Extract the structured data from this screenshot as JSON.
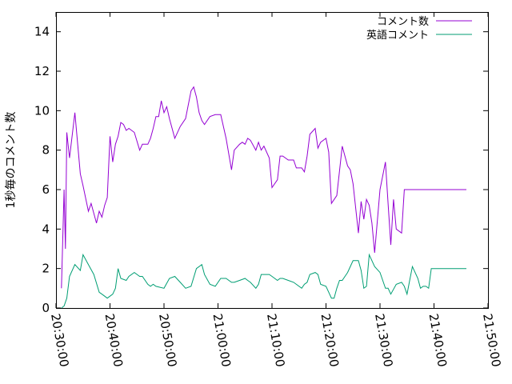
{
  "chart_data": {
    "type": "line",
    "title": "",
    "xlabel": "",
    "ylabel": "1秒毎のコメント数",
    "xlim": [
      "20:30:00",
      "21:50:00"
    ],
    "ylim": [
      0,
      15
    ],
    "xticks": [
      "20:30:00",
      "20:40:00",
      "20:50:00",
      "21:00:00",
      "21:10:00",
      "21:20:00",
      "21:30:00",
      "21:40:00",
      "21:50:00"
    ],
    "yticks": [
      "0",
      "2",
      "4",
      "6",
      "8",
      "10",
      "12",
      "14"
    ],
    "grid": false,
    "legend_position": "top-right",
    "series": [
      {
        "name": "コメント数",
        "color": "#9400d3",
        "x": [
          "20:31:00",
          "20:31:30",
          "20:31:45",
          "20:32:00",
          "20:32:30",
          "20:33:30",
          "20:34:30",
          "20:35:00",
          "20:36:00",
          "20:36:30",
          "20:37:30",
          "20:38:00",
          "20:38:30",
          "20:39:00",
          "20:39:30",
          "20:40:00",
          "20:40:30",
          "20:41:00",
          "20:41:30",
          "20:42:00",
          "20:42:30",
          "20:43:00",
          "20:43:30",
          "20:44:30",
          "20:45:30",
          "20:46:00",
          "20:47:00",
          "20:47:30",
          "20:48:00",
          "20:48:30",
          "20:49:00",
          "20:49:30",
          "20:50:00",
          "20:50:30",
          "20:51:00",
          "20:52:00",
          "20:53:00",
          "20:54:00",
          "20:54:30",
          "20:55:00",
          "20:55:30",
          "20:56:00",
          "20:56:30",
          "20:57:00",
          "20:57:30",
          "20:58:30",
          "20:59:30",
          "21:00:30",
          "21:01:30",
          "21:02:30",
          "21:03:00",
          "21:04:00",
          "21:04:30",
          "21:05:00",
          "21:05:30",
          "21:06:00",
          "21:07:00",
          "21:07:30",
          "21:08:00",
          "21:08:30",
          "21:09:30",
          "21:10:00",
          "21:11:00",
          "21:11:30",
          "21:12:00",
          "21:13:00",
          "21:14:00",
          "21:14:30",
          "21:15:30",
          "21:16:00",
          "21:16:30",
          "21:17:00",
          "21:18:00",
          "21:18:30",
          "21:19:00",
          "21:20:00",
          "21:20:30",
          "21:21:00",
          "21:22:00",
          "21:23:00",
          "21:24:00",
          "21:24:30",
          "21:25:00",
          "21:26:00",
          "21:26:30",
          "21:27:00",
          "21:27:30",
          "21:28:00",
          "21:28:30",
          "21:29:00",
          "21:30:00",
          "21:31:00",
          "21:31:30",
          "21:32:00",
          "21:32:30",
          "21:33:00",
          "21:34:00",
          "21:34:30",
          "21:35:00",
          "21:35:30",
          "21:36:00",
          "21:36:30",
          "21:37:00",
          "21:37:30",
          "21:38:00",
          "21:38:30",
          "21:39:00",
          "21:39:30",
          "21:40:00",
          "21:41:00",
          "21:41:30",
          "21:42:00",
          "21:42:30",
          "21:43:00",
          "21:44:00",
          "21:44:30",
          "21:45:00",
          "21:45:30",
          "21:46:00"
        ],
        "y": [
          1.0,
          6.0,
          3.0,
          8.9,
          7.6,
          9.9,
          6.8,
          6.2,
          4.9,
          5.3,
          4.3,
          4.9,
          4.6,
          5.2,
          5.6,
          8.7,
          7.4,
          8.3,
          8.7,
          9.4,
          9.3,
          9.0,
          9.1,
          8.9,
          8.0,
          8.3,
          8.3,
          8.6,
          9.1,
          9.7,
          9.7,
          10.5,
          9.9,
          10.2,
          9.6,
          8.6,
          9.2,
          9.6,
          10.3,
          11.0,
          11.2,
          10.7,
          9.9,
          9.5,
          9.3,
          9.7,
          9.8,
          9.8,
          8.6,
          7.0,
          8.0,
          8.3,
          8.4,
          8.3,
          8.6,
          8.5,
          8.0,
          8.4,
          8.0,
          8.2,
          7.6,
          6.1,
          6.5,
          7.7,
          7.7,
          7.5,
          7.5,
          7.1,
          7.1,
          6.9,
          7.7,
          8.8,
          9.1,
          8.1,
          8.4,
          8.6,
          7.9,
          5.3,
          5.7,
          8.2,
          7.2,
          7.0,
          6.3,
          3.8,
          5.4,
          4.5,
          5.5,
          5.2,
          4.3,
          2.8,
          6.0,
          7.4,
          5.3,
          3.2,
          5.5,
          4.0,
          3.8,
          6.0,
          6.0,
          6.0,
          6.0,
          6.0,
          6.0,
          6.0,
          6.0,
          6.0,
          6.0,
          6.0,
          6.0,
          6.0,
          6.0,
          6.0,
          6.0,
          6.0,
          6.0,
          6.0,
          6.0,
          6.0,
          6.0
        ]
      },
      {
        "name": "英語コメント",
        "color": "#009e73",
        "x": [
          "20:31:00",
          "20:31:30",
          "20:32:00",
          "20:32:30",
          "20:33:30",
          "20:34:30",
          "20:35:00",
          "20:36:00",
          "20:37:00",
          "20:38:00",
          "20:38:30",
          "20:39:00",
          "20:39:30",
          "20:40:30",
          "20:41:00",
          "20:41:30",
          "20:42:00",
          "20:43:00",
          "20:43:30",
          "20:44:30",
          "20:45:30",
          "20:46:00",
          "20:47:00",
          "20:47:30",
          "20:48:00",
          "20:48:30",
          "20:50:00",
          "20:51:00",
          "20:52:00",
          "20:53:00",
          "20:54:00",
          "20:55:00",
          "20:56:00",
          "20:57:00",
          "20:57:30",
          "20:58:30",
          "20:59:30",
          "21:00:30",
          "21:01:30",
          "21:02:30",
          "21:03:00",
          "21:04:00",
          "21:05:00",
          "21:05:30",
          "21:06:00",
          "21:07:00",
          "21:07:30",
          "21:08:00",
          "21:09:30",
          "21:10:00",
          "21:11:00",
          "21:11:30",
          "21:12:00",
          "21:13:00",
          "21:14:00",
          "21:14:30",
          "21:15:30",
          "21:16:00",
          "21:16:30",
          "21:17:00",
          "21:18:00",
          "21:18:30",
          "21:19:00",
          "21:20:00",
          "21:20:30",
          "21:21:00",
          "21:21:30",
          "21:22:00",
          "21:22:30",
          "21:23:00",
          "21:24:00",
          "21:25:00",
          "21:26:00",
          "21:26:30",
          "21:27:00",
          "21:27:30",
          "21:28:00",
          "21:28:30",
          "21:29:00",
          "21:30:00",
          "21:31:00",
          "21:31:30",
          "21:32:00",
          "21:33:00",
          "21:34:00",
          "21:34:30",
          "21:35:00",
          "21:35:30",
          "21:36:00",
          "21:37:00",
          "21:37:30",
          "21:38:00",
          "21:38:30",
          "21:39:00",
          "21:39:30",
          "21:40:00",
          "21:41:00",
          "21:42:00",
          "21:42:30",
          "21:43:00",
          "21:44:00",
          "21:44:30",
          "21:45:00",
          "21:45:30",
          "21:46:00"
        ],
        "y": [
          0.0,
          0.1,
          0.5,
          1.6,
          2.2,
          1.9,
          2.7,
          2.2,
          1.7,
          0.8,
          0.7,
          0.6,
          0.5,
          0.7,
          1.0,
          2.0,
          1.5,
          1.4,
          1.6,
          1.8,
          1.6,
          1.6,
          1.2,
          1.1,
          1.2,
          1.1,
          1.0,
          1.5,
          1.6,
          1.3,
          1.0,
          1.1,
          2.0,
          2.2,
          1.7,
          1.2,
          1.1,
          1.5,
          1.5,
          1.3,
          1.3,
          1.4,
          1.5,
          1.4,
          1.3,
          1.0,
          1.2,
          1.7,
          1.7,
          1.6,
          1.4,
          1.5,
          1.5,
          1.4,
          1.3,
          1.2,
          1.0,
          1.2,
          1.3,
          1.7,
          1.8,
          1.7,
          1.2,
          1.1,
          0.8,
          0.5,
          0.5,
          1.0,
          1.4,
          1.4,
          1.8,
          2.4,
          2.4,
          1.9,
          1.0,
          1.1,
          2.7,
          2.4,
          2.1,
          1.8,
          1.0,
          1.0,
          0.7,
          1.2,
          1.3,
          1.1,
          0.7,
          1.4,
          2.1,
          1.5,
          1.0,
          1.1,
          1.1,
          1.0,
          2.0,
          2.0,
          2.0,
          2.0,
          2.0,
          2.0,
          2.0,
          2.0,
          2.0,
          2.0,
          2.0
        ]
      }
    ]
  }
}
